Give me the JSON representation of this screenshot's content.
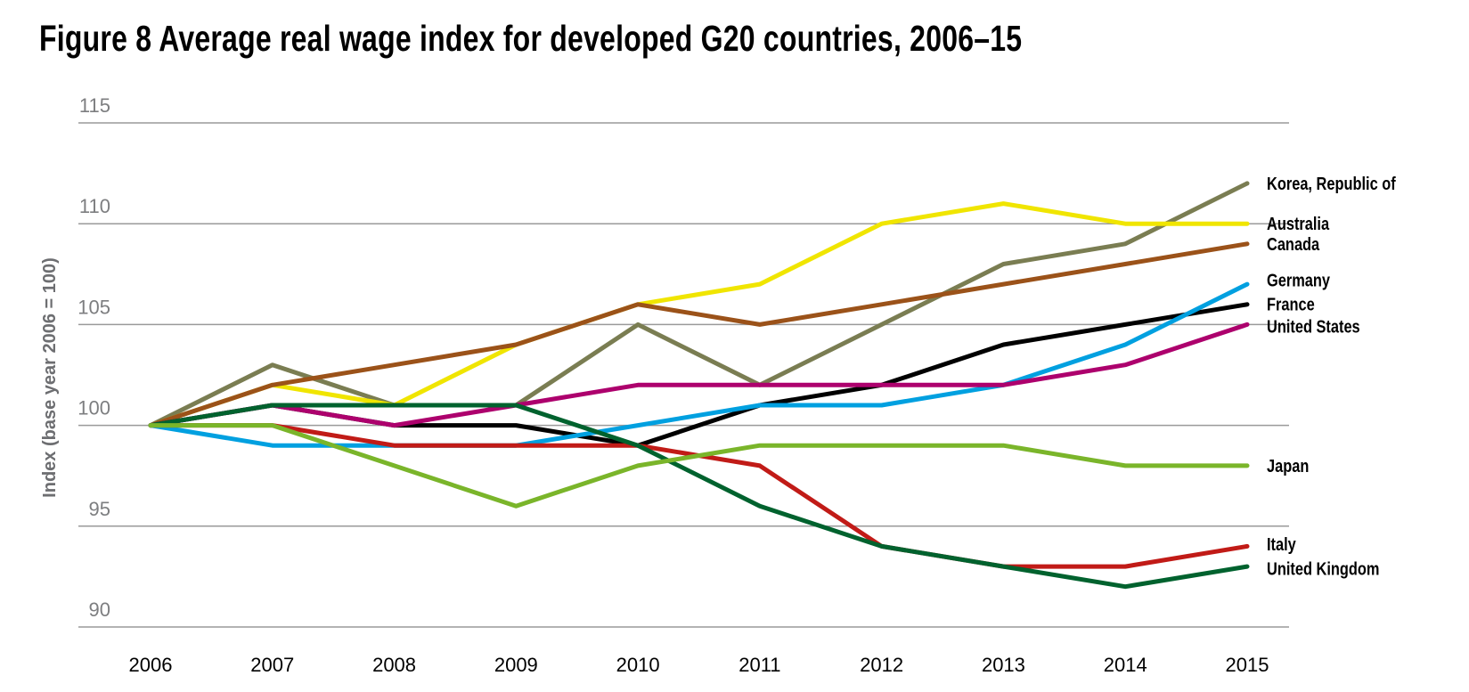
{
  "figure": {
    "title": "Figure 8  Average real wage index for developed G20 countries, 2006–15"
  },
  "chart_data": {
    "type": "line",
    "title": "Figure 8  Average real wage index for developed G20 countries, 2006–15",
    "xlabel": "",
    "ylabel": "Index (base year 2006 = 100)",
    "x": [
      "2006",
      "2007",
      "2008",
      "2009",
      "2010",
      "2011",
      "2012",
      "2013",
      "2014",
      "2015"
    ],
    "ylim": [
      90,
      115
    ],
    "yticks": [
      90,
      95,
      100,
      105,
      110,
      115
    ],
    "grid": true,
    "legend": "direct-labels-right",
    "series": [
      {
        "name": "Korea, Republic of",
        "color": "#7a7d52",
        "values": [
          100,
          103,
          101,
          101,
          105,
          102,
          105,
          108,
          109,
          112
        ]
      },
      {
        "name": "Australia",
        "color": "#f0e500",
        "values": [
          100,
          102,
          101,
          104,
          106,
          107,
          110,
          111,
          110,
          110
        ]
      },
      {
        "name": "Canada",
        "color": "#9b5219",
        "values": [
          100,
          102,
          103,
          104,
          106,
          105,
          106,
          107,
          108,
          109
        ]
      },
      {
        "name": "France",
        "color": "#000000",
        "values": [
          100,
          101,
          100,
          100,
          99,
          101,
          102,
          104,
          105,
          106
        ]
      },
      {
        "name": "Germany",
        "color": "#00a0e0",
        "values": [
          100,
          99,
          99,
          99,
          100,
          101,
          101,
          102,
          104,
          107
        ]
      },
      {
        "name": "United States",
        "color": "#ad006d",
        "values": [
          100,
          101,
          100,
          101,
          102,
          102,
          102,
          102,
          103,
          105
        ]
      },
      {
        "name": "Italy",
        "color": "#c11b17",
        "values": [
          100,
          100,
          99,
          99,
          99,
          98,
          94,
          93,
          93,
          94
        ]
      },
      {
        "name": "United Kingdom",
        "color": "#00622e",
        "values": [
          100,
          101,
          101,
          101,
          99,
          96,
          94,
          93,
          92,
          93
        ]
      },
      {
        "name": "Japan",
        "color": "#7ab52a",
        "values": [
          100,
          100,
          98,
          96,
          98,
          99,
          99,
          99,
          98,
          98
        ]
      }
    ],
    "labels": [
      {
        "name": "Korea, Republic of",
        "at": 112
      },
      {
        "name": "Australia",
        "at": 110
      },
      {
        "name": "Canada",
        "at": 109
      },
      {
        "name": "Germany",
        "at": 107.2
      },
      {
        "name": "France",
        "at": 106
      },
      {
        "name": "United States",
        "at": 104.9
      },
      {
        "name": "Japan",
        "at": 98
      },
      {
        "name": "Italy",
        "at": 94.1
      },
      {
        "name": "United Kingdom",
        "at": 92.9
      }
    ]
  }
}
